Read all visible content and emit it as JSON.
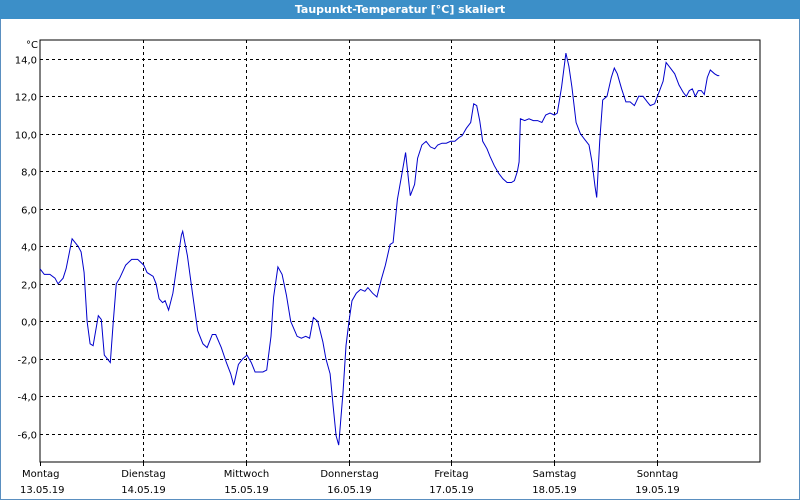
{
  "window": {
    "title": "Taupunkt-Temperatur [°C] skaliert"
  },
  "colors": {
    "titlebar": "#3c8fc8",
    "series": "#0000cc",
    "grid": "#000000"
  },
  "chart_data": {
    "type": "line",
    "title": "Taupunkt-Temperatur [°C] skaliert",
    "ylabel": "°C",
    "ylim": [
      -7.5,
      15.0
    ],
    "xlim": [
      0,
      168
    ],
    "yticks": [
      14.0,
      12.0,
      10.0,
      8.0,
      6.0,
      4.0,
      2.0,
      0.0,
      -2.0,
      -4.0,
      -6.0
    ],
    "ytick_labels": [
      "14,0",
      "12,0",
      "10,0",
      "8,0",
      "6,0",
      "4,0",
      "2,0",
      "0,0",
      "-2,0",
      "-4,0",
      "-6,0"
    ],
    "x_day_labels": [
      {
        "day": "Montag",
        "date": "13.05.19"
      },
      {
        "day": "Dienstag",
        "date": "14.05.19"
      },
      {
        "day": "Mittwoch",
        "date": "15.05.19"
      },
      {
        "day": "Donnerstag",
        "date": "16.05.19"
      },
      {
        "day": "Freitag",
        "date": "17.05.19"
      },
      {
        "day": "Samstag",
        "date": "18.05.19"
      },
      {
        "day": "Sonntag",
        "date": "19.05.19"
      }
    ],
    "grid": true,
    "series": [
      {
        "points": [
          [
            0,
            2.8
          ],
          [
            1,
            2.5
          ],
          [
            2.3,
            2.5
          ],
          [
            3.5,
            2.3
          ],
          [
            4.2,
            2.0
          ],
          [
            5.4,
            2.3
          ],
          [
            6.1,
            2.8
          ],
          [
            7.5,
            4.4
          ],
          [
            8.9,
            4.0
          ],
          [
            9.6,
            3.7
          ],
          [
            10.3,
            2.6
          ],
          [
            11.0,
            0.0
          ],
          [
            11.7,
            -1.2
          ],
          [
            12.4,
            -1.3
          ],
          [
            13.6,
            0.3
          ],
          [
            14.3,
            0.1
          ],
          [
            15.0,
            -1.8
          ],
          [
            16.4,
            -2.2
          ],
          [
            17.1,
            0.0
          ],
          [
            17.8,
            2.0
          ],
          [
            18.6,
            2.3
          ],
          [
            20.0,
            3.0
          ],
          [
            21.4,
            3.3
          ],
          [
            22.8,
            3.3
          ],
          [
            24.2,
            3.0
          ],
          [
            25.0,
            2.6
          ],
          [
            26.4,
            2.4
          ],
          [
            27.1,
            2.0
          ],
          [
            27.8,
            1.2
          ],
          [
            28.6,
            1.0
          ],
          [
            29.2,
            1.1
          ],
          [
            30.0,
            0.6
          ],
          [
            31.0,
            1.5
          ],
          [
            32.2,
            3.4
          ],
          [
            33.0,
            4.6
          ],
          [
            33.3,
            4.8
          ],
          [
            34.4,
            3.5
          ],
          [
            35.4,
            1.8
          ],
          [
            36.8,
            -0.5
          ],
          [
            38.0,
            -1.2
          ],
          [
            39.0,
            -1.4
          ],
          [
            40.2,
            -0.7
          ],
          [
            41.0,
            -0.7
          ],
          [
            42.3,
            -1.4
          ],
          [
            43.5,
            -2.2
          ],
          [
            44.5,
            -2.8
          ],
          [
            45.2,
            -3.4
          ],
          [
            46.3,
            -2.3
          ],
          [
            47.3,
            -2.0
          ],
          [
            48.3,
            -1.8
          ],
          [
            49.3,
            -2.2
          ],
          [
            50.2,
            -2.7
          ],
          [
            51.3,
            -2.7
          ],
          [
            52.0,
            -2.7
          ],
          [
            52.9,
            -2.6
          ],
          [
            53.9,
            -0.8
          ],
          [
            54.5,
            1.3
          ],
          [
            55.5,
            2.9
          ],
          [
            56.5,
            2.5
          ],
          [
            57.5,
            1.4
          ],
          [
            58.5,
            0.0
          ],
          [
            60.0,
            -0.8
          ],
          [
            61.0,
            -0.9
          ],
          [
            62.0,
            -0.8
          ],
          [
            62.9,
            -0.9
          ],
          [
            63.8,
            0.2
          ],
          [
            64.8,
            0.0
          ],
          [
            66.0,
            -1.1
          ],
          [
            66.7,
            -2.0
          ],
          [
            67.7,
            -2.8
          ],
          [
            68.4,
            -4.5
          ],
          [
            69.1,
            -6.1
          ],
          [
            69.7,
            -6.6
          ],
          [
            70.7,
            -3.8
          ],
          [
            71.4,
            -1.3
          ],
          [
            72.1,
            0.0
          ],
          [
            72.8,
            1.1
          ],
          [
            73.8,
            1.5
          ],
          [
            74.8,
            1.7
          ],
          [
            75.8,
            1.6
          ],
          [
            76.5,
            1.8
          ],
          [
            77.6,
            1.5
          ],
          [
            78.6,
            1.3
          ],
          [
            79.6,
            2.2
          ],
          [
            80.6,
            3.0
          ],
          [
            81.7,
            4.1
          ],
          [
            82.4,
            4.2
          ],
          [
            83.4,
            6.5
          ],
          [
            84.4,
            7.8
          ],
          [
            85.3,
            9.0
          ],
          [
            86.0,
            7.5
          ],
          [
            86.4,
            6.7
          ],
          [
            87.4,
            7.3
          ],
          [
            88.1,
            8.7
          ],
          [
            89.1,
            9.4
          ],
          [
            90.1,
            9.6
          ],
          [
            91.1,
            9.3
          ],
          [
            92.1,
            9.2
          ],
          [
            92.8,
            9.4
          ],
          [
            93.8,
            9.5
          ],
          [
            94.8,
            9.5
          ],
          [
            95.8,
            9.6
          ],
          [
            96.8,
            9.6
          ],
          [
            97.8,
            9.8
          ],
          [
            98.5,
            9.9
          ],
          [
            99.5,
            10.3
          ],
          [
            100.5,
            10.6
          ],
          [
            101.2,
            11.6
          ],
          [
            101.9,
            11.5
          ],
          [
            102.6,
            10.7
          ],
          [
            103.3,
            9.6
          ],
          [
            104.3,
            9.2
          ],
          [
            105.0,
            8.8
          ],
          [
            106.0,
            8.3
          ],
          [
            107.0,
            7.9
          ],
          [
            108.0,
            7.6
          ],
          [
            109.0,
            7.4
          ],
          [
            110.0,
            7.4
          ],
          [
            110.7,
            7.5
          ],
          [
            111.4,
            8.0
          ],
          [
            111.8,
            8.5
          ],
          [
            112.1,
            10.8
          ],
          [
            113.1,
            10.7
          ],
          [
            114.1,
            10.8
          ],
          [
            115.1,
            10.7
          ],
          [
            116.1,
            10.7
          ],
          [
            117.1,
            10.6
          ],
          [
            118.0,
            11.0
          ],
          [
            119.0,
            11.1
          ],
          [
            120.0,
            11.0
          ],
          [
            120.7,
            11.1
          ],
          [
            121.7,
            12.5
          ],
          [
            122.7,
            14.3
          ],
          [
            123.4,
            13.6
          ],
          [
            124.1,
            12.5
          ],
          [
            125.1,
            10.6
          ],
          [
            126.1,
            10.0
          ],
          [
            127.1,
            9.7
          ],
          [
            128.1,
            9.4
          ],
          [
            128.8,
            8.5
          ],
          [
            129.5,
            7.2
          ],
          [
            129.9,
            6.6
          ],
          [
            130.6,
            9.6
          ],
          [
            131.3,
            11.8
          ],
          [
            132.3,
            12.0
          ],
          [
            133.3,
            13.0
          ],
          [
            134.0,
            13.5
          ],
          [
            134.7,
            13.2
          ],
          [
            135.7,
            12.4
          ],
          [
            136.7,
            11.7
          ],
          [
            137.7,
            11.7
          ],
          [
            138.7,
            11.5
          ],
          [
            139.7,
            12.0
          ],
          [
            140.7,
            12.0
          ],
          [
            141.7,
            11.7
          ],
          [
            142.4,
            11.5
          ],
          [
            143.4,
            11.6
          ],
          [
            144.4,
            12.2
          ],
          [
            145.4,
            12.8
          ],
          [
            146.1,
            13.8
          ],
          [
            147.1,
            13.5
          ],
          [
            148.1,
            13.2
          ],
          [
            149.1,
            12.6
          ],
          [
            150.1,
            12.2
          ],
          [
            150.8,
            12.0
          ],
          [
            151.5,
            12.3
          ],
          [
            152.2,
            12.4
          ],
          [
            152.9,
            12.0
          ],
          [
            153.6,
            12.3
          ],
          [
            154.3,
            12.3
          ],
          [
            155.0,
            12.1
          ],
          [
            155.7,
            13.0
          ],
          [
            156.4,
            13.4
          ],
          [
            157.4,
            13.2
          ],
          [
            158.1,
            13.1
          ],
          [
            158.5,
            13.1
          ]
        ]
      }
    ]
  }
}
